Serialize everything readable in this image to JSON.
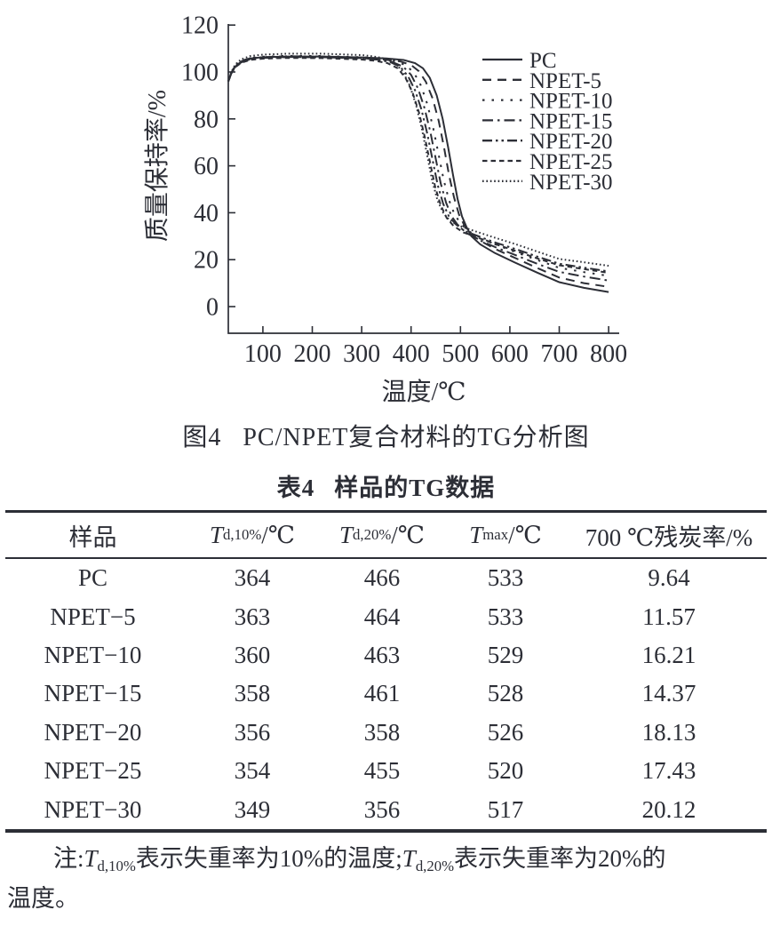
{
  "page": {
    "background": "#ffffff",
    "ink": "#2c2e36"
  },
  "figure_caption": {
    "label": "图4",
    "text": "PC/NPET复合材料的TG分析图"
  },
  "chart_data": {
    "type": "line",
    "title": "",
    "xlabel": "温度/℃",
    "ylabel": "质量保持率/%",
    "xlim": [
      30,
      810
    ],
    "ylim": [
      0,
      120
    ],
    "xticks": [
      100,
      200,
      300,
      400,
      500,
      600,
      700,
      800
    ],
    "yticks": [
      0,
      20,
      40,
      60,
      80,
      100,
      120
    ],
    "grid": false,
    "legend_position": "upper-right",
    "stroke": "#2c2e36",
    "series": [
      {
        "name": "PC",
        "dash": "",
        "points": [
          [
            30,
            96
          ],
          [
            36,
            99.5
          ],
          [
            44,
            102.3
          ],
          [
            56,
            104.4
          ],
          [
            75,
            105.8
          ],
          [
            100,
            106.3
          ],
          [
            150,
            106.6
          ],
          [
            220,
            106.6
          ],
          [
            300,
            106.2
          ],
          [
            350,
            105.8
          ],
          [
            385,
            105.1
          ],
          [
            408,
            103.8
          ],
          [
            424,
            101.6
          ],
          [
            438,
            97.5
          ],
          [
            452,
            90
          ],
          [
            464,
            80
          ],
          [
            475,
            68
          ],
          [
            485,
            56
          ],
          [
            494,
            46
          ],
          [
            503,
            38.5
          ],
          [
            512,
            34
          ],
          [
            522,
            30
          ],
          [
            540,
            26.5
          ],
          [
            570,
            22.8
          ],
          [
            610,
            18.8
          ],
          [
            655,
            14.5
          ],
          [
            700,
            10.4
          ],
          [
            750,
            8
          ],
          [
            800,
            6.2
          ]
        ]
      },
      {
        "name": "NPET-5",
        "dash": "10 7",
        "points": [
          [
            30,
            96
          ],
          [
            36,
            99.4
          ],
          [
            44,
            102.2
          ],
          [
            56,
            104.2
          ],
          [
            75,
            105.6
          ],
          [
            100,
            106.1
          ],
          [
            150,
            106.4
          ],
          [
            220,
            106.3
          ],
          [
            300,
            105.9
          ],
          [
            345,
            105.3
          ],
          [
            378,
            104.5
          ],
          [
            400,
            103
          ],
          [
            416,
            100.3
          ],
          [
            430,
            95.8
          ],
          [
            444,
            88.5
          ],
          [
            456,
            79
          ],
          [
            467,
            67.5
          ],
          [
            477,
            56
          ],
          [
            487,
            46.5
          ],
          [
            497,
            39.2
          ],
          [
            508,
            34.6
          ],
          [
            520,
            31
          ],
          [
            542,
            27.8
          ],
          [
            572,
            24.4
          ],
          [
            612,
            20.6
          ],
          [
            656,
            16.4
          ],
          [
            700,
            12.4
          ],
          [
            750,
            10
          ],
          [
            800,
            8.4
          ]
        ]
      },
      {
        "name": "NPET-10",
        "dash": "2.5 8",
        "points": [
          [
            30,
            96
          ],
          [
            36,
            99.7
          ],
          [
            44,
            102.6
          ],
          [
            56,
            104.7
          ],
          [
            75,
            106
          ],
          [
            100,
            106.5
          ],
          [
            150,
            106.9
          ],
          [
            220,
            106.8
          ],
          [
            300,
            106.3
          ],
          [
            340,
            105.7
          ],
          [
            368,
            104.7
          ],
          [
            390,
            102.8
          ],
          [
            406,
            99.6
          ],
          [
            420,
            94.2
          ],
          [
            433,
            86.2
          ],
          [
            445,
            76
          ],
          [
            456,
            64.5
          ],
          [
            466,
            54
          ],
          [
            477,
            45.3
          ],
          [
            488,
            39.3
          ],
          [
            501,
            35.2
          ],
          [
            516,
            32.2
          ],
          [
            542,
            29.2
          ],
          [
            572,
            26.4
          ],
          [
            612,
            23.2
          ],
          [
            656,
            19.8
          ],
          [
            700,
            16.5
          ],
          [
            750,
            14.7
          ],
          [
            800,
            13.1
          ]
        ]
      },
      {
        "name": "NPET-15",
        "dash": "12 5 2.5 5",
        "points": [
          [
            30,
            96
          ],
          [
            36,
            99.4
          ],
          [
            44,
            102.2
          ],
          [
            56,
            104.1
          ],
          [
            75,
            105.5
          ],
          [
            100,
            106
          ],
          [
            150,
            106.4
          ],
          [
            220,
            106.3
          ],
          [
            300,
            105.8
          ],
          [
            335,
            105.2
          ],
          [
            362,
            104.2
          ],
          [
            384,
            102.3
          ],
          [
            400,
            98.8
          ],
          [
            414,
            93
          ],
          [
            427,
            84.8
          ],
          [
            439,
            74.5
          ],
          [
            450,
            63
          ],
          [
            460,
            52.5
          ],
          [
            471,
            44.2
          ],
          [
            482,
            38.5
          ],
          [
            495,
            34.7
          ],
          [
            512,
            31.4
          ],
          [
            542,
            28
          ],
          [
            572,
            25.2
          ],
          [
            612,
            21.9
          ],
          [
            656,
            18.2
          ],
          [
            700,
            14.8
          ],
          [
            750,
            12.8
          ],
          [
            800,
            11.1
          ]
        ]
      },
      {
        "name": "NPET-20",
        "dash": "11 4 2.5 4 2.5 4",
        "points": [
          [
            30,
            96
          ],
          [
            36,
            99.8
          ],
          [
            44,
            102.7
          ],
          [
            56,
            104.6
          ],
          [
            75,
            105.9
          ],
          [
            100,
            106.3
          ],
          [
            150,
            106.7
          ],
          [
            220,
            106.6
          ],
          [
            300,
            106
          ],
          [
            330,
            105.3
          ],
          [
            357,
            104.3
          ],
          [
            378,
            102.2
          ],
          [
            394,
            98.2
          ],
          [
            408,
            92.2
          ],
          [
            421,
            84
          ],
          [
            433,
            73.5
          ],
          [
            444,
            62
          ],
          [
            454,
            51.8
          ],
          [
            465,
            43.8
          ],
          [
            477,
            38.3
          ],
          [
            491,
            35
          ],
          [
            509,
            32.2
          ],
          [
            540,
            29.7
          ],
          [
            572,
            27.2
          ],
          [
            612,
            24.5
          ],
          [
            656,
            21.3
          ],
          [
            700,
            18.3
          ],
          [
            750,
            16.6
          ],
          [
            800,
            15
          ]
        ]
      },
      {
        "name": "NPET-25",
        "dash": "5.5 4",
        "points": [
          [
            30,
            96
          ],
          [
            36,
            99.3
          ],
          [
            44,
            102
          ],
          [
            56,
            103.9
          ],
          [
            75,
            105.2
          ],
          [
            100,
            105.7
          ],
          [
            150,
            106
          ],
          [
            220,
            105.9
          ],
          [
            300,
            105.3
          ],
          [
            326,
            104.8
          ],
          [
            352,
            103.8
          ],
          [
            373,
            101.6
          ],
          [
            389,
            97.4
          ],
          [
            403,
            91.2
          ],
          [
            416,
            82.8
          ],
          [
            428,
            72
          ],
          [
            439,
            60.8
          ],
          [
            449,
            50.8
          ],
          [
            460,
            43.2
          ],
          [
            472,
            37.8
          ],
          [
            486,
            34.4
          ],
          [
            506,
            31.6
          ],
          [
            540,
            29
          ],
          [
            572,
            26.5
          ],
          [
            612,
            23.7
          ],
          [
            656,
            20.5
          ],
          [
            700,
            17.6
          ],
          [
            750,
            16
          ],
          [
            800,
            14.4
          ]
        ]
      },
      {
        "name": "NPET-30",
        "dash": "1.6 2.8",
        "points": [
          [
            30,
            96
          ],
          [
            36,
            100
          ],
          [
            44,
            103.2
          ],
          [
            56,
            105.4
          ],
          [
            75,
            106.8
          ],
          [
            100,
            107.4
          ],
          [
            150,
            107.8
          ],
          [
            220,
            107.8
          ],
          [
            300,
            107.2
          ],
          [
            322,
            106.7
          ],
          [
            348,
            105.7
          ],
          [
            368,
            103.8
          ],
          [
            383,
            100.2
          ],
          [
            397,
            94.4
          ],
          [
            410,
            86
          ],
          [
            422,
            75.5
          ],
          [
            433,
            64
          ],
          [
            443,
            53.5
          ],
          [
            454,
            45
          ],
          [
            466,
            39.6
          ],
          [
            481,
            36.2
          ],
          [
            503,
            34
          ],
          [
            540,
            31.4
          ],
          [
            572,
            29.2
          ],
          [
            612,
            26.6
          ],
          [
            656,
            23.4
          ],
          [
            700,
            20.3
          ],
          [
            750,
            18.9
          ],
          [
            800,
            17.4
          ]
        ]
      }
    ]
  },
  "table": {
    "title_label": "表4",
    "title_text": "样品的TG数据",
    "headers": [
      {
        "segments": [
          {
            "t": "样品"
          }
        ]
      },
      {
        "segments": [
          {
            "i": "T"
          },
          {
            "sub": "d,10%"
          },
          {
            "t": "/℃"
          }
        ]
      },
      {
        "segments": [
          {
            "i": "T"
          },
          {
            "sub": "d,20%"
          },
          {
            "t": "/℃"
          }
        ]
      },
      {
        "segments": [
          {
            "i": "T"
          },
          {
            "sub": "max"
          },
          {
            "t": "/℃"
          }
        ]
      },
      {
        "segments": [
          {
            "t": "700 ℃残炭率/%"
          }
        ]
      }
    ],
    "rows": [
      [
        "PC",
        "364",
        "466",
        "533",
        "9.64"
      ],
      [
        "NPET−5",
        "363",
        "464",
        "533",
        "11.57"
      ],
      [
        "NPET−10",
        "360",
        "463",
        "529",
        "16.21"
      ],
      [
        "NPET−15",
        "358",
        "461",
        "528",
        "14.37"
      ],
      [
        "NPET−20",
        "356",
        "358",
        "526",
        "18.13"
      ],
      [
        "NPET−25",
        "354",
        "455",
        "520",
        "17.43"
      ],
      [
        "NPET−30",
        "349",
        "356",
        "517",
        "20.12"
      ]
    ]
  },
  "note": {
    "lines": [
      [
        {
          "t": "注:"
        },
        {
          "i": "T"
        },
        {
          "sub": "d,10%"
        },
        {
          "t": "表示失重率为10%的温度;"
        },
        {
          "i": "T"
        },
        {
          "sub": "d,20%"
        },
        {
          "t": "表示失重率为20%的"
        }
      ],
      [
        {
          "t": "温度。"
        }
      ]
    ]
  }
}
